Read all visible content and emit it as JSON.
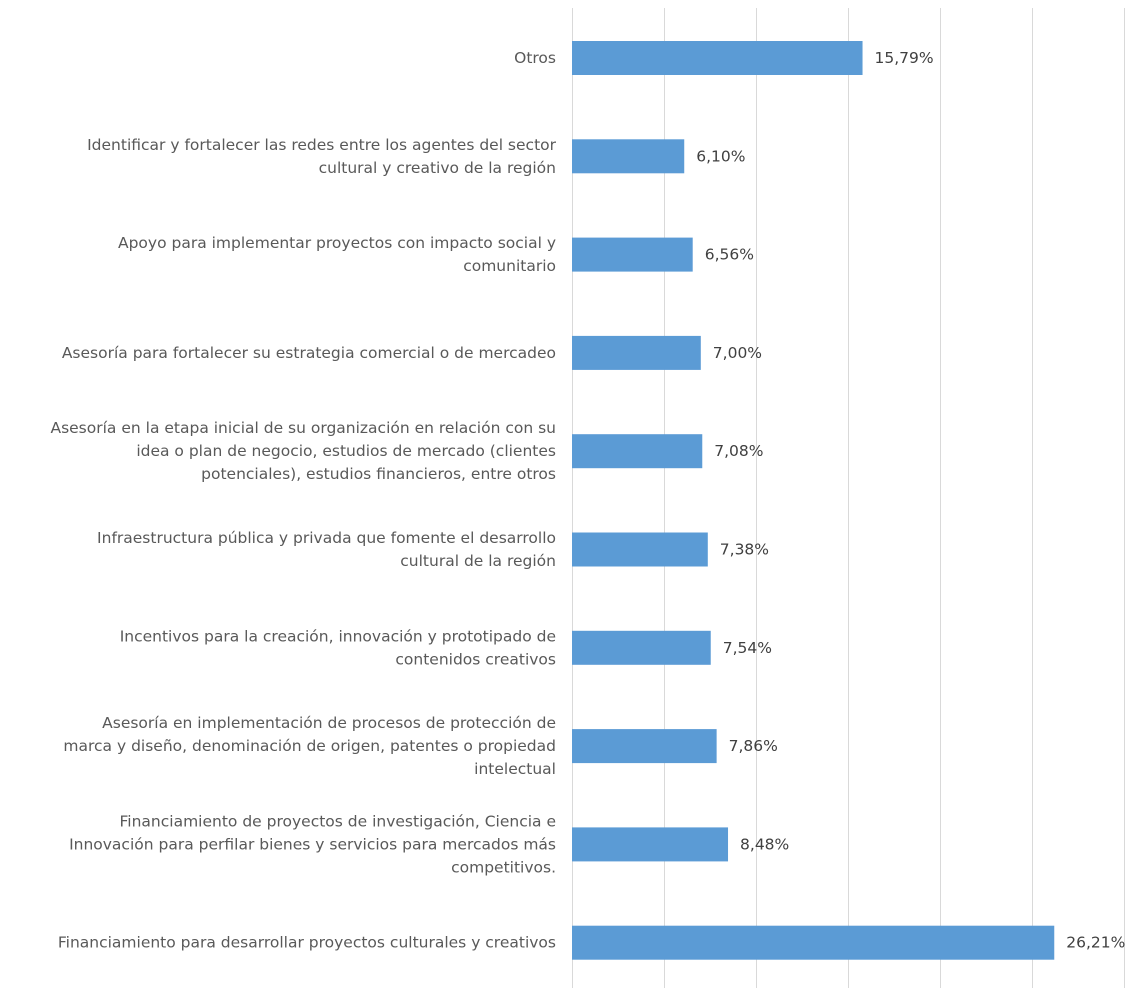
{
  "chart_data": {
    "type": "bar",
    "orientation": "horizontal",
    "title": "",
    "xlabel": "",
    "ylabel": "",
    "xlim": [
      0,
      30
    ],
    "grid": true,
    "legend": "none",
    "bar_color": "#5b9bd5",
    "categories": [
      "Otros",
      "Identificar y fortalecer las redes entre los agentes del sector cultural y creativo de la región",
      "Apoyo para implementar proyectos con impacto social y comunitario",
      "Asesoría para fortalecer su estrategia comercial o de mercadeo",
      "Asesoría en la etapa inicial de su organización en relación con su idea o plan de negocio, estudios de mercado (clientes potenciales), estudios financieros, entre otros",
      "Infraestructura pública y privada que fomente el desarrollo cultural de la región",
      "Incentivos para la creación, innovación y prototipado de contenidos creativos",
      "Asesoría en implementación de procesos de protección de marca y diseño, denominación de origen, patentes o propiedad intelectual",
      "Financiamiento de proyectos de investigación, Ciencia e Innovación para perfilar bienes y servicios para mercados más competitivos.",
      "Financiamiento para desarrollar proyectos culturales y creativos"
    ],
    "category_lines": [
      [
        "Otros"
      ],
      [
        "Identificar y fortalecer las redes entre los agentes del sector",
        "cultural y creativo de la región"
      ],
      [
        "Apoyo para implementar proyectos con impacto social y",
        "comunitario"
      ],
      [
        "Asesoría para fortalecer su estrategia comercial o de mercadeo"
      ],
      [
        "Asesoría en la etapa inicial de su organización en relación con su",
        "idea o plan de negocio, estudios de mercado (clientes",
        "potenciales), estudios financieros, entre otros"
      ],
      [
        "Infraestructura pública y privada que fomente el desarrollo",
        "cultural de la región"
      ],
      [
        "Incentivos para la creación, innovación y prototipado de",
        "contenidos creativos"
      ],
      [
        "Asesoría en implementación de procesos de protección de",
        "marca y diseño, denominación de origen, patentes o propiedad",
        "intelectual"
      ],
      [
        "Financiamiento de proyectos de investigación, Ciencia e",
        "Innovación para perfilar bienes y servicios para mercados más",
        "competitivos."
      ],
      [
        "Financiamiento para desarrollar proyectos culturales y creativos"
      ]
    ],
    "values": [
      15.79,
      6.1,
      6.56,
      7.0,
      7.08,
      7.38,
      7.54,
      7.86,
      8.48,
      26.21
    ],
    "value_labels": [
      "15,79%",
      "6,10%",
      "6,56%",
      "7,00%",
      "7,08%",
      "7,38%",
      "7,54%",
      "7,86%",
      "8,48%",
      "26,21%"
    ]
  }
}
